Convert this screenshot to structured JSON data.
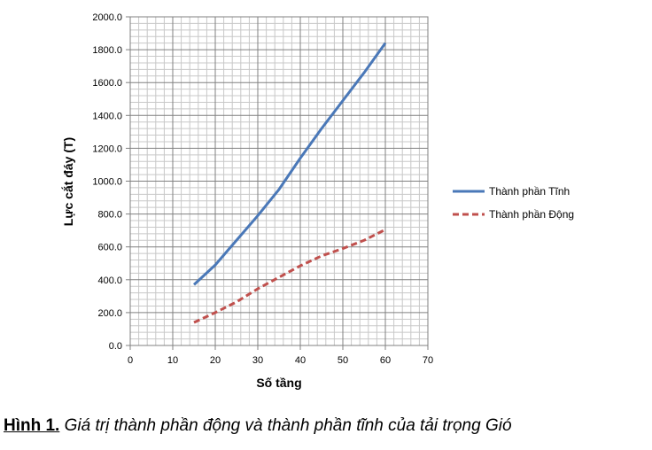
{
  "chart_data": {
    "type": "line",
    "xlabel": "Số tầng",
    "ylabel": "Lực cắt đáy (T)",
    "xlim": [
      0,
      70
    ],
    "ylim": [
      0,
      2000
    ],
    "x_ticks": [
      "0",
      "10",
      "20",
      "30",
      "40",
      "50",
      "60",
      "70"
    ],
    "y_ticks": [
      "0.0",
      "200.0",
      "400.0",
      "600.0",
      "800.0",
      "1000.0",
      "1200.0",
      "1400.0",
      "1600.0",
      "1800.0",
      "2000.0"
    ],
    "grid": true,
    "legend_position": "right",
    "series": [
      {
        "name": "Thành phần Tĩnh",
        "color": "#4a78b8",
        "dash": "solid",
        "x": [
          15,
          20,
          25,
          30,
          35,
          40,
          45,
          50,
          55,
          60
        ],
        "y": [
          370,
          490,
          640,
          790,
          950,
          1140,
          1320,
          1490,
          1660,
          1840
        ]
      },
      {
        "name": "Thành phần Động",
        "color": "#c0504d",
        "dash": "dashed",
        "x": [
          15,
          20,
          25,
          30,
          35,
          40,
          45,
          50,
          55,
          60
        ],
        "y": [
          140,
          200,
          265,
          345,
          415,
          485,
          545,
          590,
          640,
          705
        ]
      }
    ]
  },
  "caption": {
    "lead": "Hình 1.",
    "body": "Giá trị thành phần động và thành phần tĩnh của tải trọng Gió"
  }
}
